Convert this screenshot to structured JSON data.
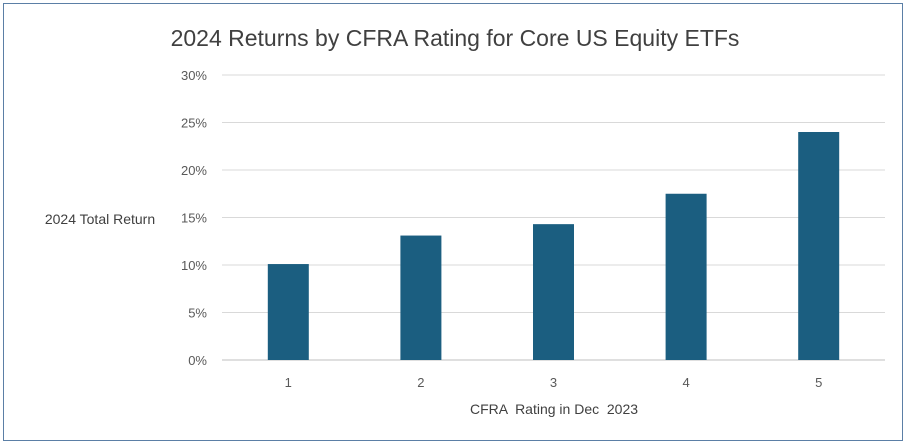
{
  "chart_data": {
    "type": "bar",
    "title": "2024 Returns by CFRA Rating for Core US Equity ETFs",
    "xlabel": "CFRA  Rating in Dec  2023",
    "ylabel": "2024 Total Return",
    "categories": [
      "1",
      "2",
      "3",
      "4",
      "5"
    ],
    "values": [
      10.1,
      13.1,
      14.3,
      17.5,
      24.0
    ],
    "ylim": [
      0,
      30
    ],
    "yticks": [
      0,
      5,
      10,
      15,
      20,
      25,
      30
    ],
    "ytick_labels": [
      "0%",
      "5%",
      "10%",
      "15%",
      "20%",
      "25%",
      "30%"
    ],
    "grid": true,
    "legend": "none",
    "bar_color": "#1b5e80"
  }
}
